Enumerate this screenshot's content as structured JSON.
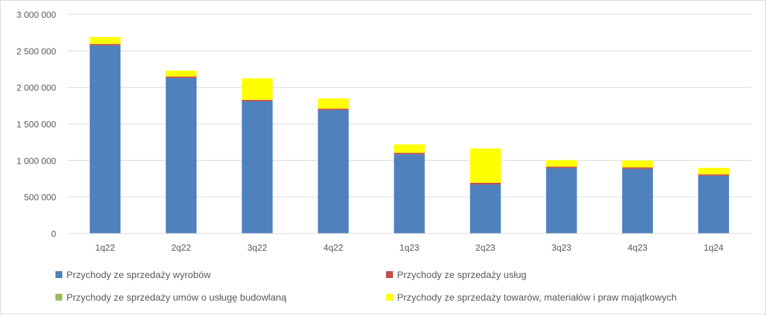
{
  "chart_data": {
    "type": "bar",
    "stacked": true,
    "title": "",
    "xlabel": "",
    "ylabel": "",
    "ylim": [
      0,
      3000000
    ],
    "yticks": [
      0,
      500000,
      1000000,
      1500000,
      2000000,
      2500000,
      3000000
    ],
    "ytick_labels": [
      "0",
      "500 000",
      "1 000 000",
      "1 500 000",
      "2 000 000",
      "2 500 000",
      "3 000 000"
    ],
    "grid": true,
    "legend_position": "bottom",
    "categories": [
      "1q22",
      "2q22",
      "3q22",
      "4q22",
      "1q23",
      "2q23",
      "3q23",
      "4q23",
      "1q24"
    ],
    "series": [
      {
        "name": "Przychody ze sprzedaży wyrobów",
        "color": "#4f81bd",
        "values": [
          2575000,
          2130000,
          1810000,
          1690000,
          1085000,
          670000,
          895000,
          885000,
          790000
        ]
      },
      {
        "name": "Przychody ze sprzedaży usług",
        "color": "#c0504d",
        "values": [
          20000,
          20000,
          20000,
          20000,
          20000,
          25000,
          20000,
          20000,
          20000
        ]
      },
      {
        "name": "Przychody ze sprzedaży umów o usługę budowlaną",
        "color": "#9bbb59",
        "values": [
          0,
          0,
          0,
          0,
          0,
          0,
          0,
          0,
          0
        ]
      },
      {
        "name": "Przychody ze sprzedaży towarów, materiałów i praw majątkowych",
        "color": "#ffff00",
        "values": [
          95000,
          80000,
          295000,
          140000,
          115000,
          470000,
          90000,
          95000,
          90000
        ]
      }
    ]
  }
}
